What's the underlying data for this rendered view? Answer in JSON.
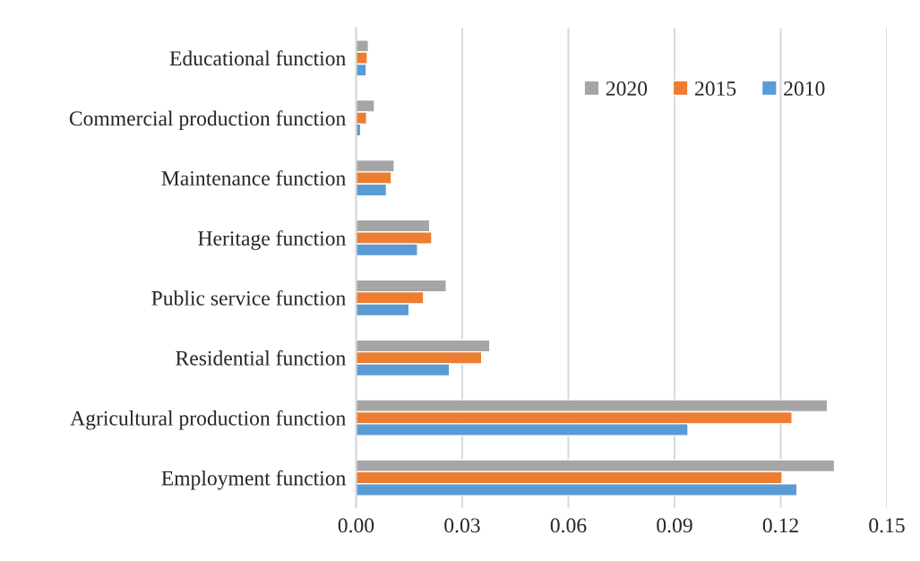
{
  "chart_data": {
    "type": "bar",
    "orientation": "horizontal",
    "categories": [
      "Educational function",
      "Commercial production function",
      "Maintenance function",
      "Heritage function",
      "Public service function",
      "Residential function",
      "Agricultural production function",
      "Employment function"
    ],
    "series": [
      {
        "name": "2020",
        "color": "#a5a5a5",
        "values": [
          0.0035,
          0.0052,
          0.0108,
          0.0208,
          0.0255,
          0.0378,
          0.1332,
          0.1352
        ]
      },
      {
        "name": "2015",
        "color": "#ed7d31",
        "values": [
          0.0032,
          0.003,
          0.01,
          0.0214,
          0.0191,
          0.0355,
          0.1232,
          0.1204
        ]
      },
      {
        "name": "2010",
        "color": "#5b9bd5",
        "values": [
          0.0029,
          0.0013,
          0.0086,
          0.0174,
          0.015,
          0.0264,
          0.0938,
          0.1246
        ]
      }
    ],
    "xlim": [
      0,
      0.15
    ],
    "xticks": [
      {
        "value": 0,
        "label": "0.00"
      },
      {
        "value": 0.03,
        "label": "0.03"
      },
      {
        "value": 0.06,
        "label": "0.06"
      },
      {
        "value": 0.09,
        "label": "0.09"
      },
      {
        "value": 0.12,
        "label": "0.12"
      },
      {
        "value": 0.15,
        "label": "0.15"
      }
    ],
    "grid": "x",
    "legend": "top right"
  }
}
